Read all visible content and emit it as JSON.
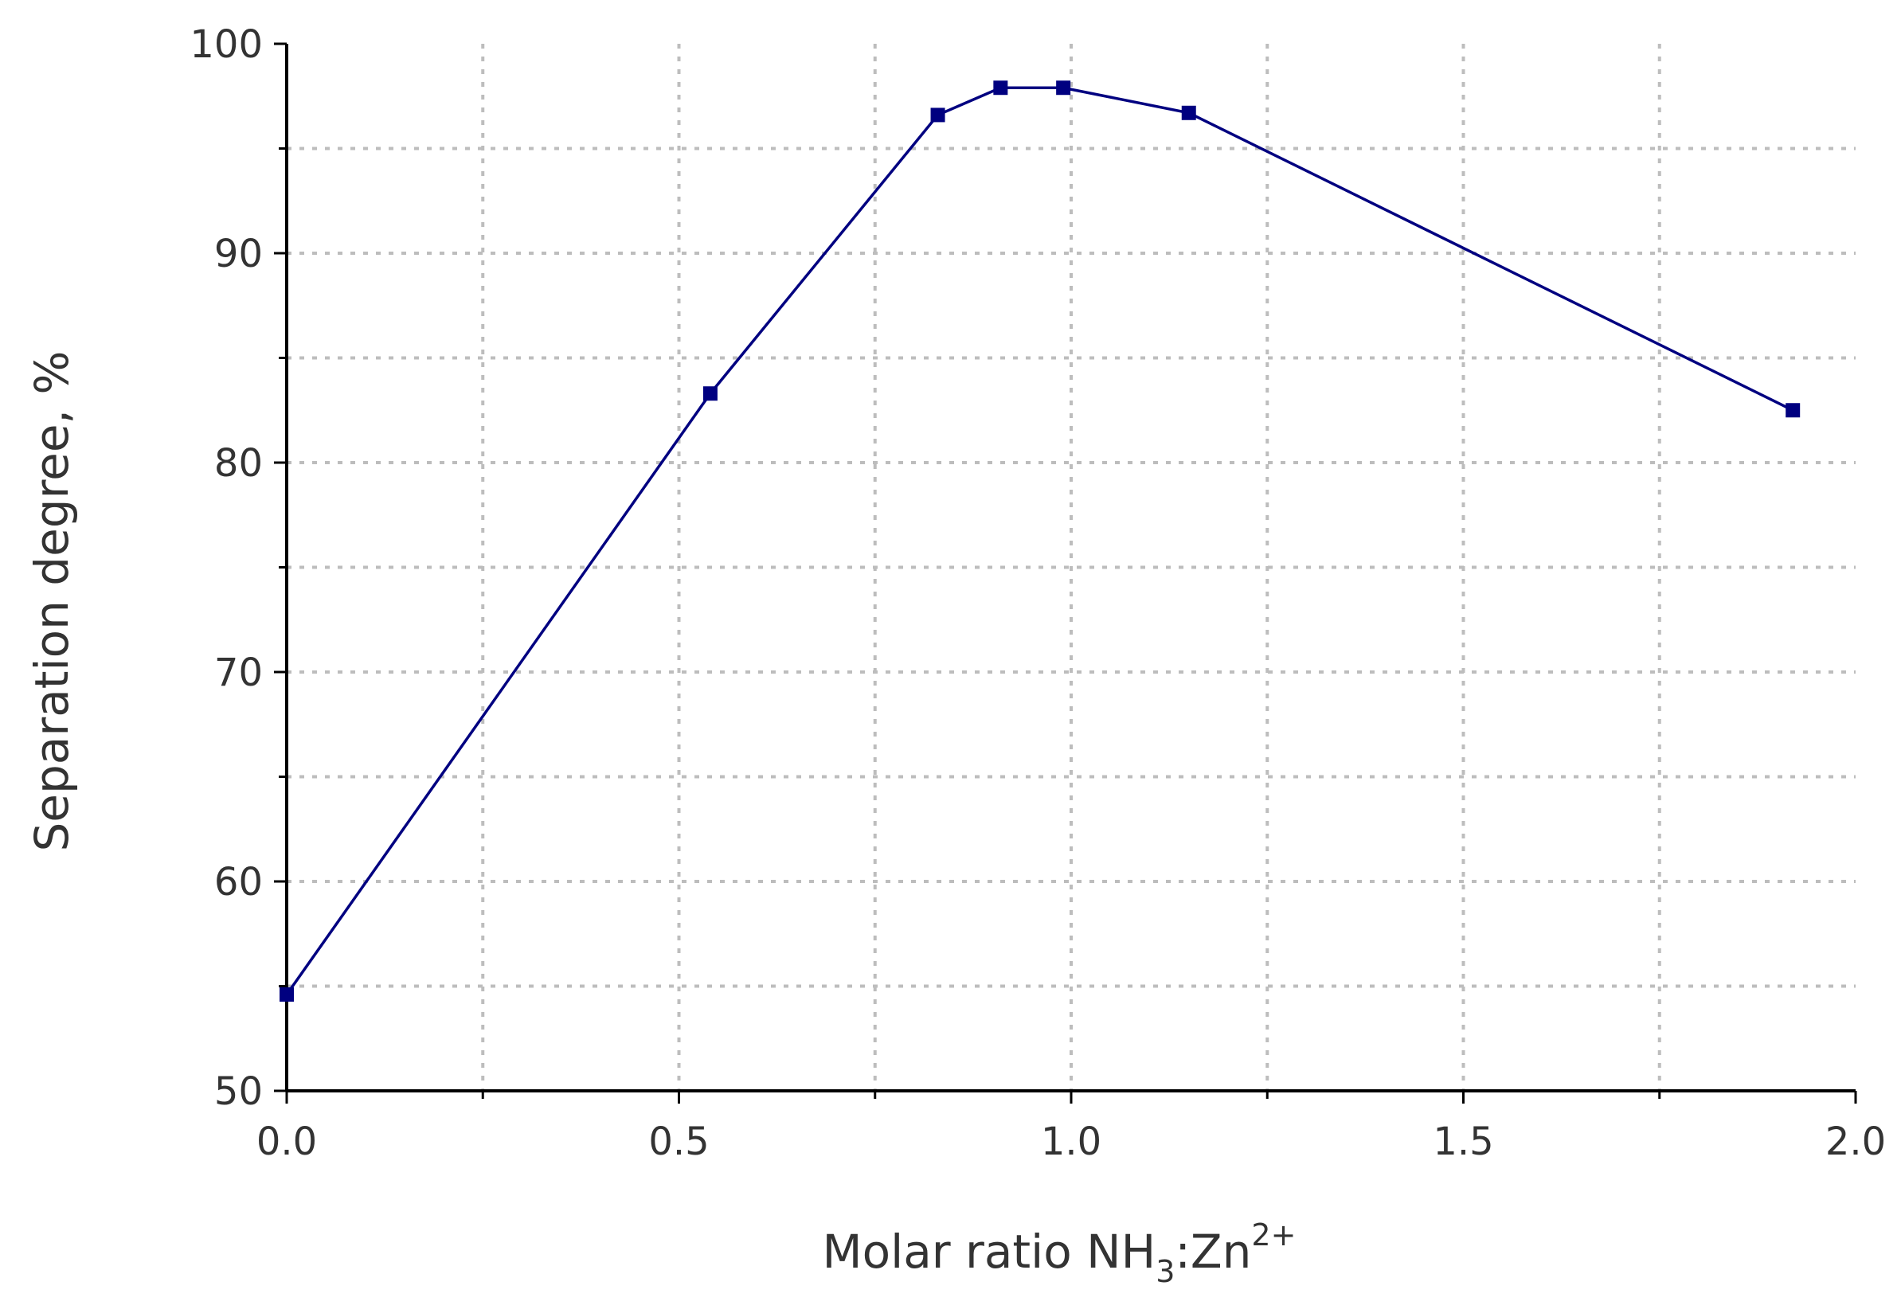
{
  "chart_data": {
    "type": "line",
    "title": "",
    "xlabel": "Molar ratio NH",
    "xlabel_sub": "3",
    "xlabel_tail": ":Zn",
    "xlabel_sup": "2+",
    "ylabel": "Separation degree, %",
    "xlim": [
      0.0,
      2.0
    ],
    "ylim": [
      50,
      100
    ],
    "x_ticks": [
      0.0,
      0.5,
      1.0,
      1.5,
      2.0
    ],
    "x_tick_labels": [
      "0.0",
      "0.5",
      "1.0",
      "1.5",
      "2.0"
    ],
    "y_ticks": [
      50,
      60,
      70,
      80,
      90,
      100
    ],
    "y_tick_labels": [
      "50",
      "60",
      "70",
      "80",
      "90",
      "100"
    ],
    "grid": true,
    "series": [
      {
        "color": "#000080",
        "marker": "square",
        "x": [
          0.0,
          0.54,
          0.83,
          0.91,
          0.99,
          1.15,
          1.92
        ],
        "y": [
          54.6,
          83.3,
          96.6,
          97.9,
          97.9,
          96.7,
          82.5
        ]
      }
    ]
  }
}
